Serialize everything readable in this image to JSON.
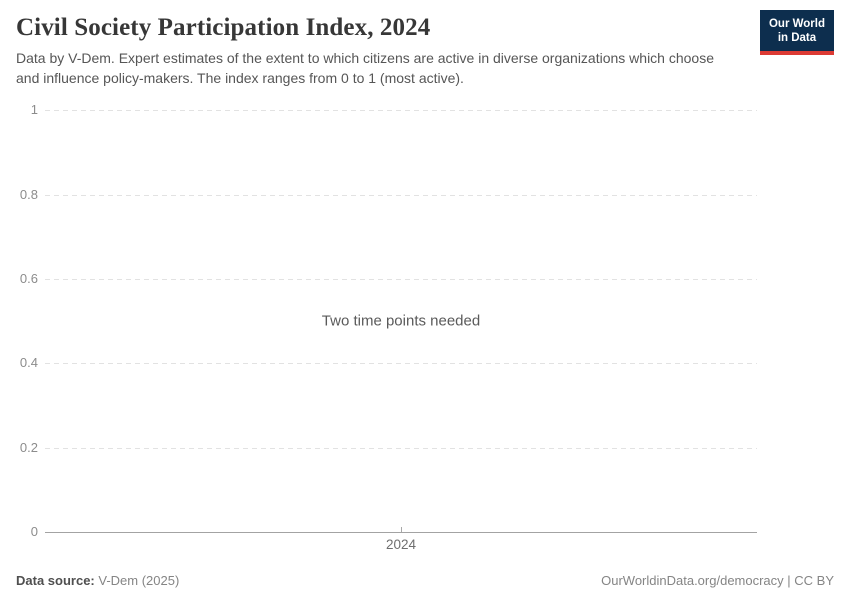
{
  "header": {
    "title": "Civil Society Participation Index, 2024",
    "subtitle": "Data by V-Dem. Expert estimates of the extent to which citizens are active in diverse organizations which choose and influence policy-makers. The index ranges from 0 to 1 (most active).",
    "logo": {
      "line1": "Our World",
      "line2": "in Data",
      "bg_color": "#0d2e4e",
      "accent_color": "#dc3a34"
    }
  },
  "chart_data": {
    "type": "line",
    "title": "Civil Society Participation Index, 2024",
    "empty_message": "Two time points needed",
    "series": [],
    "x_ticks": [
      "2024"
    ],
    "y_ticks": [
      "0",
      "0.2",
      "0.4",
      "0.6",
      "0.8",
      "1"
    ],
    "ylim": [
      0,
      1
    ],
    "grid": "horizontal-dashed",
    "legend": "none"
  },
  "footer": {
    "source_label": "Data source:",
    "source_value": "V-Dem (2025)",
    "credit": "OurWorldinData.org/democracy | CC BY"
  }
}
